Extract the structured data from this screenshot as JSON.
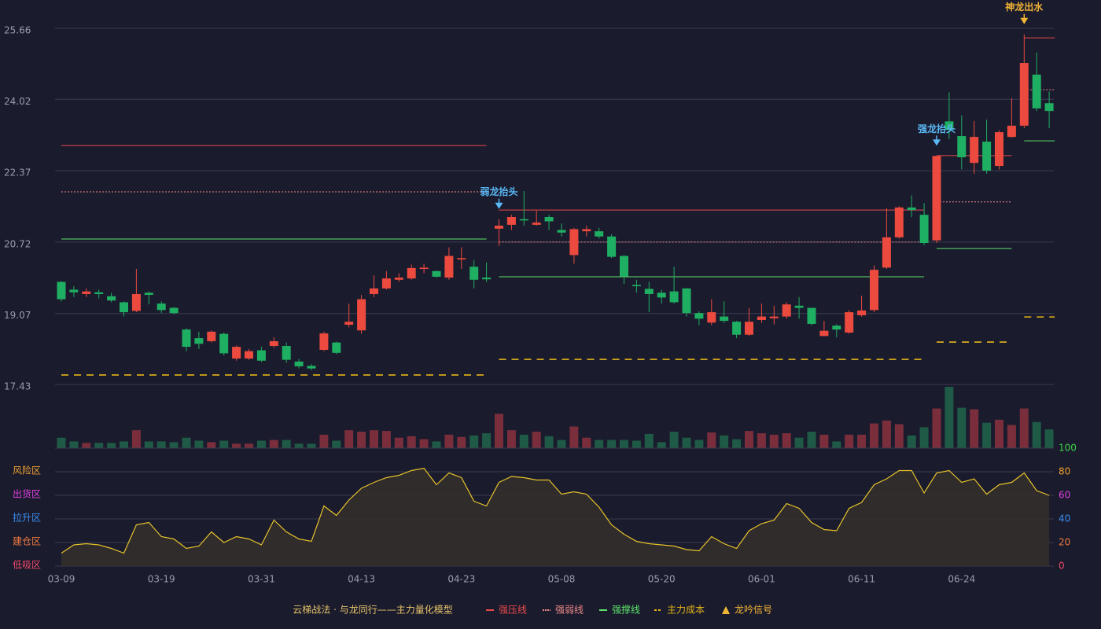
{
  "chart_data": {
    "type": "candlestick",
    "title": "云梯战法 · 与龙同行——主力量化模型",
    "categories": [
      "03-09",
      null,
      null,
      null,
      null,
      null,
      null,
      null,
      "03-19",
      null,
      null,
      null,
      null,
      null,
      null,
      null,
      "03-31",
      null,
      null,
      null,
      null,
      null,
      null,
      null,
      "04-13",
      null,
      null,
      null,
      null,
      null,
      null,
      null,
      "04-23",
      null,
      null,
      null,
      null,
      null,
      null,
      null,
      "05-08",
      null,
      null,
      null,
      null,
      null,
      null,
      null,
      "05-20",
      null,
      null,
      null,
      null,
      null,
      null,
      null,
      "06-01",
      null,
      null,
      null,
      null,
      null,
      null,
      null,
      "06-11",
      null,
      null,
      null,
      null,
      null,
      null,
      null,
      "06-24",
      null,
      null,
      null,
      null,
      null,
      null,
      null
    ],
    "open": [
      19.8,
      19.62,
      19.52,
      19.56,
      19.47,
      19.33,
      19.13,
      19.55,
      19.3,
      19.2,
      18.7,
      18.5,
      18.43,
      18.6,
      18.03,
      18.03,
      18.22,
      18.32,
      18.32,
      17.96,
      17.86,
      18.23,
      18.4,
      18.81,
      18.68,
      19.52,
      19.65,
      19.85,
      19.88,
      20.1,
      20.05,
      19.9,
      20.32,
      20.15,
      19.9,
      21.03,
      21.12,
      21.25,
      21.12,
      21.3,
      21.0,
      20.42,
      20.97,
      20.97,
      20.85,
      20.4,
      19.73,
      19.64,
      19.55,
      19.58,
      19.65,
      19.08,
      18.86,
      19.0,
      18.88,
      18.58,
      18.92,
      18.96,
      19.0,
      19.25,
      19.2,
      18.55,
      18.79,
      18.63,
      19.03,
      19.15,
      20.13,
      20.83,
      21.52,
      21.35,
      20.76,
      23.51,
      23.17,
      22.55,
      23.04,
      22.48,
      23.15,
      23.41,
      24.59,
      23.93
    ],
    "high": [
      19.82,
      19.7,
      19.65,
      19.62,
      19.55,
      19.35,
      20.1,
      19.58,
      19.35,
      19.22,
      18.73,
      18.65,
      18.68,
      18.63,
      18.33,
      18.25,
      18.3,
      18.52,
      18.4,
      18.02,
      17.9,
      18.65,
      18.42,
      19.3,
      19.5,
      19.95,
      20.05,
      20.0,
      20.2,
      20.22,
      20.06,
      20.6,
      20.6,
      20.3,
      20.25,
      21.25,
      21.35,
      21.9,
      21.45,
      21.35,
      21.15,
      21.05,
      21.1,
      21.05,
      20.9,
      20.42,
      19.85,
      19.8,
      19.62,
      20.15,
      19.66,
      19.12,
      19.4,
      19.35,
      18.9,
      19.2,
      19.3,
      19.25,
      19.33,
      19.45,
      19.2,
      18.9,
      18.82,
      19.15,
      19.48,
      20.18,
      21.5,
      21.55,
      21.8,
      21.62,
      22.71,
      24.18,
      23.65,
      23.52,
      23.55,
      23.3,
      24.05,
      25.52,
      25.1,
      24.2
    ],
    "low": [
      19.35,
      19.45,
      19.45,
      19.42,
      19.33,
      19.0,
      19.1,
      19.28,
      19.08,
      19.05,
      18.2,
      18.25,
      18.4,
      18.1,
      17.98,
      18.0,
      17.95,
      18.28,
      17.93,
      17.8,
      17.76,
      18.2,
      18.13,
      18.75,
      18.6,
      19.45,
      19.62,
      19.8,
      19.85,
      20.0,
      19.9,
      19.85,
      20.1,
      19.65,
      19.8,
      20.63,
      21.0,
      21.1,
      21.1,
      21.0,
      20.85,
      20.22,
      20.85,
      20.8,
      20.35,
      19.75,
      19.55,
      19.1,
      19.3,
      19.3,
      19.0,
      18.8,
      18.8,
      18.85,
      18.5,
      18.55,
      18.85,
      18.82,
      18.95,
      18.95,
      18.8,
      18.55,
      18.52,
      18.6,
      19.0,
      19.1,
      20.1,
      20.8,
      21.3,
      20.65,
      20.7,
      23.1,
      22.4,
      22.3,
      22.3,
      22.4,
      23.13,
      23.35,
      23.75,
      23.35
    ],
    "close": [
      19.4,
      19.56,
      19.58,
      19.52,
      19.37,
      19.1,
      19.52,
      19.5,
      19.15,
      19.08,
      18.3,
      18.37,
      18.65,
      18.15,
      18.3,
      18.2,
      17.98,
      18.43,
      18.0,
      17.85,
      17.8,
      18.61,
      18.16,
      18.88,
      19.4,
      19.65,
      19.88,
      19.9,
      20.12,
      20.13,
      19.92,
      20.4,
      20.35,
      19.85,
      19.86,
      21.1,
      21.3,
      21.22,
      21.17,
      21.2,
      20.94,
      21.02,
      21.02,
      20.85,
      20.38,
      19.93,
      19.7,
      19.52,
      19.44,
      19.33,
      19.08,
      18.95,
      19.1,
      18.9,
      18.58,
      18.88,
      19.0,
      19.0,
      19.28,
      19.2,
      18.83,
      18.67,
      18.7,
      19.1,
      19.14,
      20.08,
      20.83,
      21.52,
      21.46,
      20.7,
      22.71,
      23.31,
      22.68,
      23.15,
      22.37,
      23.26,
      23.41,
      24.86,
      23.81,
      23.75
    ],
    "volume": [
      14,
      9,
      7,
      7,
      7,
      9,
      24,
      9,
      9,
      8,
      14,
      10,
      8,
      10,
      6,
      6,
      10,
      11,
      11,
      6,
      6,
      18,
      10,
      24,
      22,
      24,
      23,
      14,
      16,
      12,
      9,
      18,
      15,
      17,
      20,
      46,
      24,
      18,
      22,
      16,
      11,
      29,
      14,
      11,
      11,
      11,
      10,
      19,
      8,
      22,
      14,
      11,
      21,
      17,
      12,
      23,
      20,
      18,
      20,
      14,
      22,
      18,
      9,
      18,
      18,
      33,
      37,
      32,
      17,
      28,
      53,
      82,
      54,
      52,
      34,
      38,
      31,
      53,
      35,
      25
    ],
    "up_color": "#ec4a3e",
    "down_color": "#1faf62",
    "ylim": [
      17.43,
      25.66
    ],
    "yticks": [
      17.43,
      19.07,
      20.72,
      22.37,
      24.02,
      25.66
    ],
    "grid": true,
    "levels": [
      {
        "name": "强压线",
        "color": "#e84a4a",
        "style": "solid",
        "segments": [
          {
            "start": 0,
            "end": 34,
            "value": 22.95
          },
          {
            "start": 35,
            "end": 69,
            "value": 21.46
          },
          {
            "start": 70,
            "end": 76,
            "value": 22.72
          },
          {
            "start": 77,
            "end": 79,
            "value": 25.44
          }
        ]
      },
      {
        "name": "强弱线",
        "color": "#f08a8a",
        "style": "dotted",
        "segments": [
          {
            "start": 0,
            "end": 34,
            "value": 21.88
          },
          {
            "start": 35,
            "end": 69,
            "value": 20.72
          },
          {
            "start": 70,
            "end": 76,
            "value": 21.65
          },
          {
            "start": 77,
            "end": 79,
            "value": 24.24
          }
        ]
      },
      {
        "name": "强撑线",
        "color": "#5ee36a",
        "style": "solid",
        "segments": [
          {
            "start": 0,
            "end": 34,
            "value": 20.79
          },
          {
            "start": 35,
            "end": 69,
            "value": 19.92
          },
          {
            "start": 70,
            "end": 76,
            "value": 20.57
          },
          {
            "start": 77,
            "end": 79,
            "value": 23.06
          }
        ]
      },
      {
        "name": "主力成本",
        "color": "#e6b619",
        "style": "dashed",
        "segments": [
          {
            "start": 0,
            "end": 34,
            "value": 17.65
          },
          {
            "start": 35,
            "end": 69,
            "value": 18.01
          },
          {
            "start": 70,
            "end": 76,
            "value": 18.41
          },
          {
            "start": 77,
            "end": 79,
            "value": 18.99
          }
        ]
      }
    ],
    "signals": [
      {
        "label": "弱龙抬头",
        "index": 35,
        "color": "#5ab8f5"
      },
      {
        "label": "强龙抬头",
        "index": 70,
        "color": "#5ab8f5"
      },
      {
        "label": "神龙出水",
        "index": 77,
        "color": "#f2b535"
      }
    ],
    "signal_legend": "龙吟信号",
    "signal_legend_color": "#f2b535",
    "indicator": {
      "values": [
        11,
        18,
        19,
        18,
        15,
        11,
        35,
        37,
        25,
        23,
        15,
        17,
        29,
        20,
        25,
        23,
        18,
        39,
        29,
        23,
        21,
        51,
        43,
        56,
        66,
        71,
        75,
        77,
        81,
        83,
        69,
        79,
        75,
        55,
        51,
        71,
        76,
        75,
        73,
        73,
        61,
        63,
        61,
        50,
        35,
        27,
        21,
        19,
        18,
        17,
        14,
        13,
        25,
        19,
        15,
        30,
        36,
        39,
        53,
        49,
        37,
        31,
        30,
        49,
        54,
        69,
        74,
        81,
        81,
        62,
        79,
        81,
        71,
        74,
        61,
        69,
        71,
        79,
        64,
        60
      ],
      "color": "#e6c22a",
      "ylim": [
        0,
        100
      ],
      "yticks": [
        0,
        20,
        40,
        60,
        80,
        100
      ],
      "ytick_colors": [
        "#f04a6a",
        "#f07a40",
        "#3d8ff0",
        "#e040e0",
        "#f0a030",
        "#3cd84a"
      ],
      "zones": [
        {
          "label": "低吸区",
          "value": 0,
          "color": "#f04a6a"
        },
        {
          "label": "建仓区",
          "value": 20,
          "color": "#f07a40"
        },
        {
          "label": "拉升区",
          "value": 40,
          "color": "#3d8ff0"
        },
        {
          "label": "出货区",
          "value": 60,
          "color": "#e040e0"
        },
        {
          "label": "风险区",
          "value": 80,
          "color": "#f0a030"
        }
      ]
    }
  }
}
